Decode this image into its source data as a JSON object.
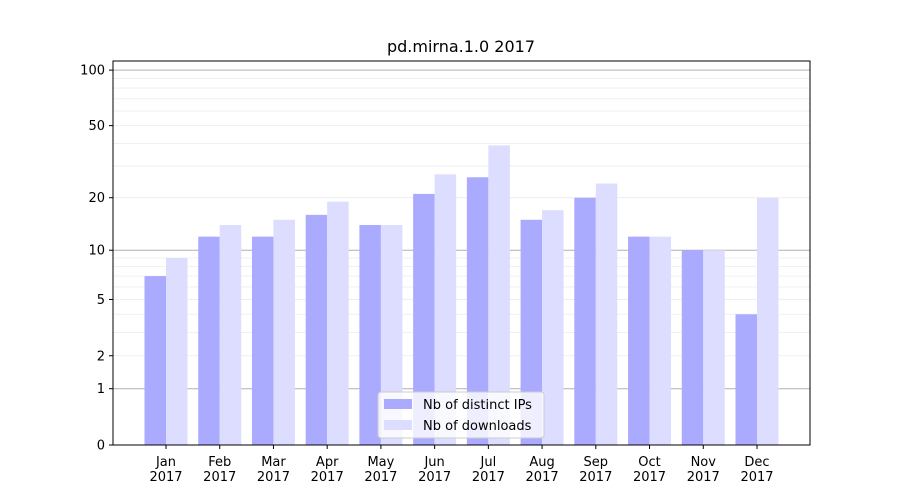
{
  "chart_data": {
    "type": "bar",
    "title": "pd.mirna.1.0 2017",
    "xlabel": "",
    "ylabel": "",
    "yscale": "log(y+1)",
    "ylim": [
      0,
      112
    ],
    "yticks": [
      0,
      1,
      2,
      5,
      10,
      20,
      50,
      100
    ],
    "categories": [
      "Jan\n2017",
      "Feb\n2017",
      "Mar\n2017",
      "Apr\n2017",
      "May\n2017",
      "Jun\n2017",
      "Jul\n2017",
      "Aug\n2017",
      "Sep\n2017",
      "Oct\n2017",
      "Nov\n2017",
      "Dec\n2017"
    ],
    "series": [
      {
        "name": "Nb of distinct IPs",
        "color": "#aaaaff",
        "values": [
          7,
          12,
          12,
          16,
          14,
          21,
          26,
          15,
          20,
          12,
          10,
          4
        ]
      },
      {
        "name": "Nb of downloads",
        "color": "#ddddff",
        "values": [
          9,
          14,
          15,
          19,
          14,
          27,
          39,
          17,
          24,
          12,
          10,
          20
        ]
      }
    ],
    "grid": true,
    "legend": "lower-center"
  }
}
